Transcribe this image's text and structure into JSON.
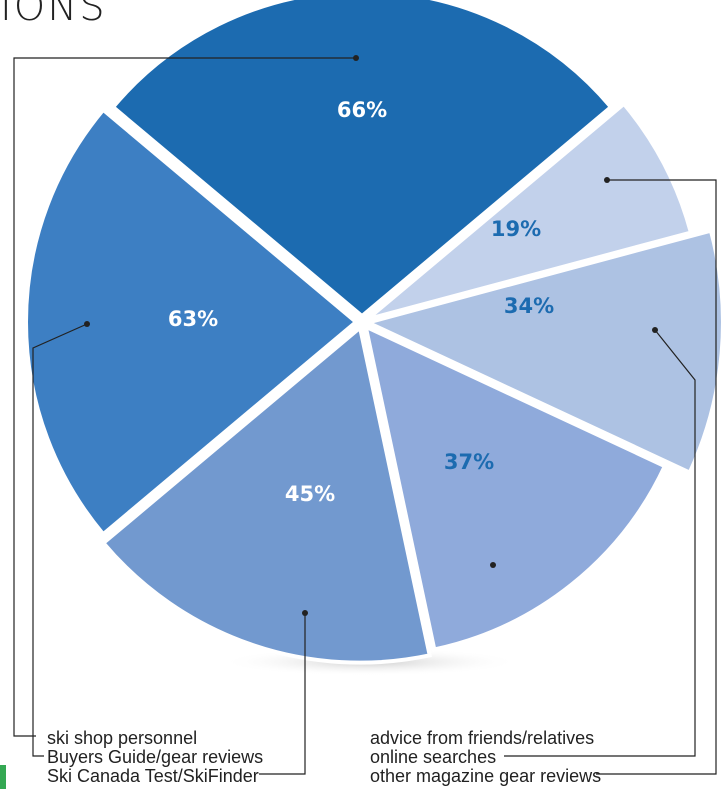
{
  "header": {
    "title_fragment": "IONS"
  },
  "chart_data": {
    "type": "pie",
    "title": "",
    "slices": [
      {
        "label": "ski shop personnel",
        "value": 66,
        "display": "66%",
        "color": "#1c6bb0",
        "text_color": "#ffffff"
      },
      {
        "label": "other magazine gear reviews",
        "value": 19,
        "display": "19%",
        "color": "#c2d1eb",
        "text_color": "#1c6bb0"
      },
      {
        "label": "online searches",
        "value": 34,
        "display": "34%",
        "color": "#adc2e3",
        "text_color": "#1c6bb0"
      },
      {
        "label": "advice from friends/relatives",
        "value": 37,
        "display": "37%",
        "color": "#8faadb",
        "text_color": "#1c6bb0"
      },
      {
        "label": "Ski Canada Test/SkiFinder",
        "value": 45,
        "display": "45%",
        "color": "#7299cf",
        "text_color": "#ffffff"
      },
      {
        "label": "Buyers Guide/gear reviews",
        "value": 63,
        "display": "63%",
        "color": "#3d7fc3",
        "text_color": "#ffffff"
      }
    ],
    "legend": {
      "left": [
        "ski shop personnel",
        "Buyers Guide/gear reviews",
        "Ski Canada Test/SkiFinder"
      ],
      "right": [
        "advice from friends/relatives",
        "online searches",
        "other magazine gear reviews"
      ]
    }
  },
  "colors": {
    "accent_green": "#34a853",
    "leader_line": "#222222"
  }
}
